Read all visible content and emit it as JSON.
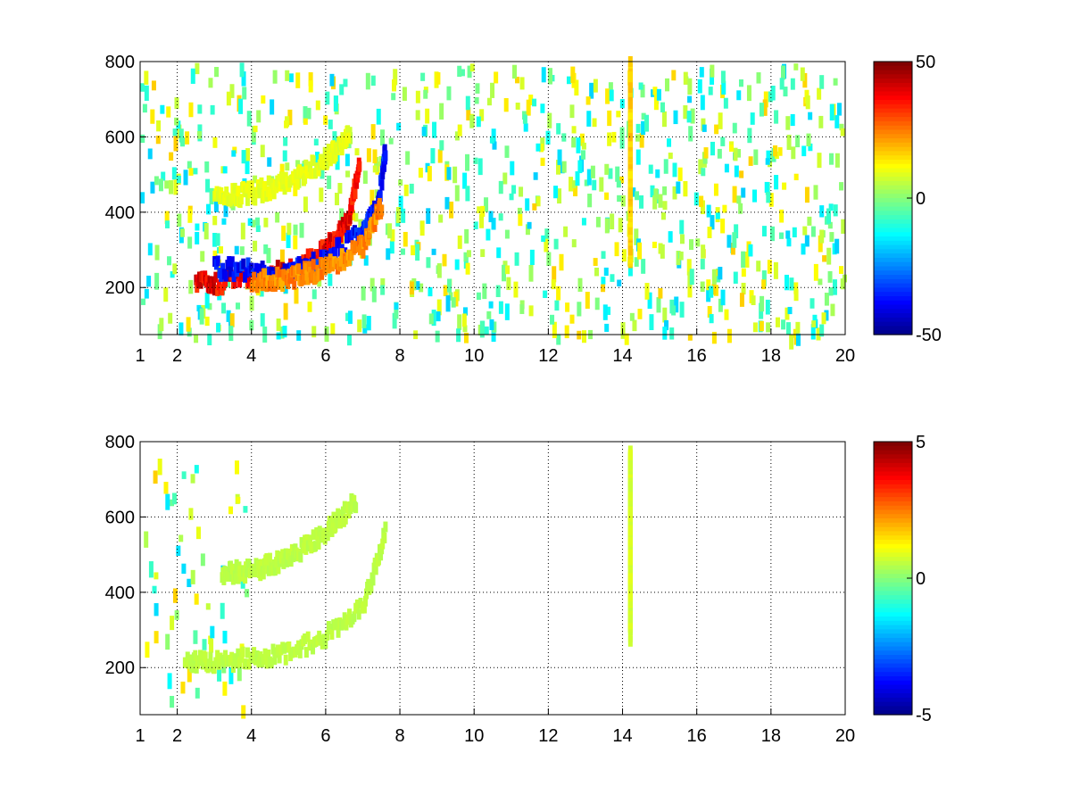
{
  "chart_data": [
    {
      "type": "heatmap",
      "title": "",
      "xlabel": "",
      "ylabel": "",
      "xlim": [
        1,
        20
      ],
      "ylim": [
        75,
        800
      ],
      "x_ticks": [
        1,
        2,
        4,
        6,
        8,
        10,
        12,
        14,
        16,
        18,
        20
      ],
      "y_ticks": [
        200,
        400,
        600,
        800
      ],
      "grid": true,
      "colormap": "jet",
      "colorbar": {
        "min": -50,
        "max": 50,
        "ticks": [
          50,
          0,
          -50
        ]
      },
      "features": [
        {
          "description": "lower arc (upper half)",
          "x": [
            2.5,
            3,
            4,
            5,
            6,
            6.6,
            6.9
          ],
          "y": [
            215,
            210,
            225,
            245,
            300,
            380,
            520
          ],
          "value": 45
        },
        {
          "description": "lower arc (lower half)",
          "x": [
            3,
            4,
            5,
            6,
            7,
            7.4,
            7.6
          ],
          "y": [
            250,
            245,
            240,
            275,
            350,
            410,
            560
          ],
          "value": -42
        },
        {
          "description": "trailing arc",
          "x": [
            4,
            5,
            6,
            7,
            7.5
          ],
          "y": [
            215,
            225,
            250,
            310,
            420
          ],
          "value": 28
        },
        {
          "description": "upper arc",
          "x": [
            3,
            4,
            5,
            6,
            6.6
          ],
          "y": [
            440,
            450,
            480,
            540,
            600
          ],
          "value": 12
        },
        {
          "description": "vertical stripe near 14",
          "x": [
            14.2,
            14.2
          ],
          "y": [
            275,
            780
          ],
          "value": 20
        }
      ]
    },
    {
      "type": "heatmap",
      "title": "",
      "xlabel": "",
      "ylabel": "",
      "xlim": [
        1,
        20
      ],
      "ylim": [
        75,
        800
      ],
      "x_ticks": [
        1,
        2,
        4,
        6,
        8,
        10,
        12,
        14,
        16,
        18,
        20
      ],
      "y_ticks": [
        200,
        400,
        600,
        800
      ],
      "grid": true,
      "colormap": "jet",
      "colorbar": {
        "min": -5,
        "max": 5,
        "ticks": [
          5,
          0,
          -5
        ]
      },
      "features": [
        {
          "description": "lower arc",
          "x": [
            2.2,
            3,
            4,
            5,
            6,
            7,
            7.6
          ],
          "y": [
            220,
            215,
            225,
            240,
            285,
            360,
            560
          ],
          "value": 0.7
        },
        {
          "description": "upper arc",
          "x": [
            3.2,
            4,
            5,
            6,
            6.8
          ],
          "y": [
            450,
            455,
            490,
            560,
            640
          ],
          "value": 0.7
        },
        {
          "description": "vertical stripe near 14",
          "x": [
            14.2,
            14.2
          ],
          "y": [
            285,
            775
          ],
          "value": 1.0
        }
      ]
    }
  ]
}
